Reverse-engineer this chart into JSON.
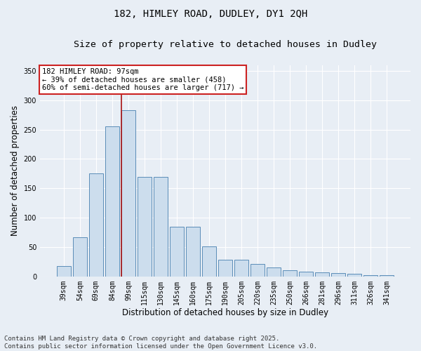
{
  "title1": "182, HIMLEY ROAD, DUDLEY, DY1 2QH",
  "title2": "Size of property relative to detached houses in Dudley",
  "xlabel": "Distribution of detached houses by size in Dudley",
  "ylabel": "Number of detached properties",
  "categories": [
    "39sqm",
    "54sqm",
    "69sqm",
    "84sqm",
    "99sqm",
    "115sqm",
    "130sqm",
    "145sqm",
    "160sqm",
    "175sqm",
    "190sqm",
    "205sqm",
    "220sqm",
    "235sqm",
    "250sqm",
    "266sqm",
    "281sqm",
    "296sqm",
    "311sqm",
    "326sqm",
    "341sqm"
  ],
  "values": [
    18,
    67,
    175,
    255,
    283,
    170,
    170,
    85,
    85,
    51,
    29,
    29,
    21,
    15,
    10,
    8,
    7,
    6,
    5,
    2,
    2
  ],
  "bar_color": "#ccdded",
  "bar_edge_color": "#5b8db8",
  "vline_index": 4,
  "vline_color": "#aa1111",
  "annotation_text": "182 HIMLEY ROAD: 97sqm\n← 39% of detached houses are smaller (458)\n60% of semi-detached houses are larger (717) →",
  "annotation_box_facecolor": "#ffffff",
  "annotation_box_edgecolor": "#cc2222",
  "ylim": [
    0,
    360
  ],
  "yticks": [
    0,
    50,
    100,
    150,
    200,
    250,
    300,
    350
  ],
  "bg_color": "#e8eef5",
  "grid_color": "#ffffff",
  "title_fontsize": 10,
  "subtitle_fontsize": 9.5,
  "axis_label_fontsize": 8.5,
  "tick_fontsize": 7,
  "annotation_fontsize": 7.5,
  "footer_fontsize": 6.5,
  "footer": "Contains HM Land Registry data © Crown copyright and database right 2025.\nContains public sector information licensed under the Open Government Licence v3.0."
}
